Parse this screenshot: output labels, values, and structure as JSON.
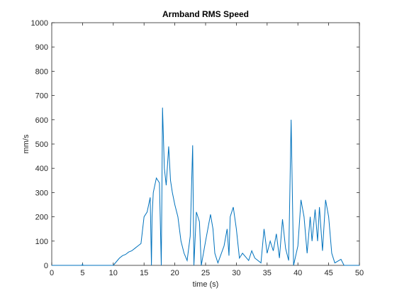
{
  "chart_data": {
    "type": "line",
    "title": "Armband RMS Speed",
    "xlabel": "time (s)",
    "ylabel": "mm/s",
    "xlim": [
      0,
      50
    ],
    "ylim": [
      0,
      1000
    ],
    "xticks": [
      0,
      5,
      10,
      15,
      20,
      25,
      30,
      35,
      40,
      45,
      50
    ],
    "yticks": [
      0,
      100,
      200,
      300,
      400,
      500,
      600,
      700,
      800,
      900,
      1000
    ],
    "grid": false,
    "series": [
      {
        "name": "RMS speed",
        "color": "#0072bd",
        "x": [
          0,
          4.9,
          5,
          5.1,
          10,
          10.5,
          11,
          11.5,
          12,
          12.5,
          13,
          13.5,
          14,
          14.5,
          15,
          15.5,
          16,
          16.2,
          16.3,
          16.5,
          17,
          17.5,
          17.8,
          17.9,
          18,
          18.3,
          18.6,
          19,
          19.3,
          19.6,
          20,
          20.5,
          21,
          21.5,
          22,
          22.5,
          22.9,
          23.1,
          23.5,
          24,
          24.3,
          25,
          25.8,
          26.2,
          26.5,
          27,
          28,
          28.5,
          28.8,
          29,
          29.5,
          30,
          30.5,
          31,
          32,
          32.5,
          33,
          34,
          34.5,
          35,
          35.5,
          36,
          36.5,
          37,
          37.5,
          38,
          38.5,
          38.9,
          39.1,
          39.3,
          40,
          40.5,
          41,
          41.5,
          42,
          42.3,
          42.8,
          43.2,
          43.5,
          44,
          44.5,
          45,
          45.5,
          46,
          47,
          47.5,
          50
        ],
        "values": [
          0,
          0,
          5,
          0,
          0,
          15,
          30,
          40,
          45,
          55,
          60,
          70,
          80,
          90,
          200,
          220,
          280,
          0,
          200,
          300,
          360,
          340,
          0,
          300,
          650,
          400,
          330,
          490,
          350,
          300,
          250,
          200,
          100,
          50,
          20,
          120,
          495,
          0,
          220,
          180,
          0,
          100,
          210,
          150,
          50,
          10,
          80,
          150,
          40,
          200,
          240,
          150,
          30,
          50,
          20,
          60,
          30,
          10,
          150,
          50,
          100,
          60,
          130,
          30,
          190,
          70,
          20,
          600,
          300,
          0,
          80,
          270,
          200,
          50,
          200,
          100,
          230,
          100,
          240,
          60,
          270,
          200,
          50,
          10,
          25,
          0,
          0
        ]
      }
    ]
  }
}
